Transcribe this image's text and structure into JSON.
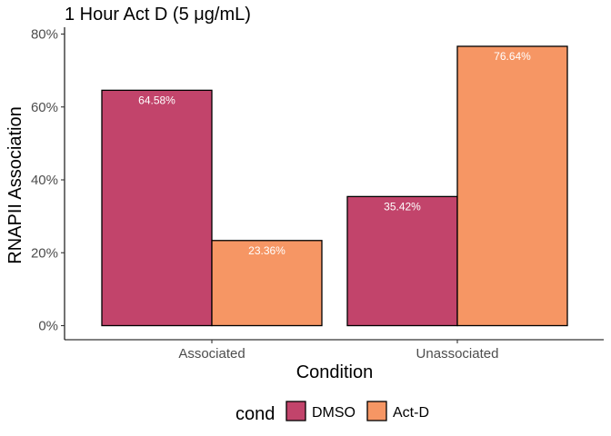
{
  "chart_data": {
    "type": "bar",
    "title": "1 Hour Act D (5 μg/mL)",
    "xlabel": "Condition",
    "ylabel": "RNAPII Association",
    "categories": [
      "Associated",
      "Unassociated"
    ],
    "series": [
      {
        "name": "DMSO",
        "values": [
          64.58,
          35.42
        ],
        "color": "#C2446B"
      },
      {
        "name": "Act-D",
        "values": [
          23.36,
          76.64
        ],
        "color": "#F69664"
      }
    ],
    "data_labels": [
      [
        "64.58%",
        "35.42%"
      ],
      [
        "23.36%",
        "76.64%"
      ]
    ],
    "ylim": [
      0,
      80
    ],
    "yticks": [
      0,
      20,
      40,
      60,
      80
    ],
    "ytick_labels": [
      "0%",
      "20%",
      "40%",
      "60%",
      "80%"
    ],
    "grid": false,
    "legend": {
      "title": "cond",
      "position": "bottom"
    }
  }
}
